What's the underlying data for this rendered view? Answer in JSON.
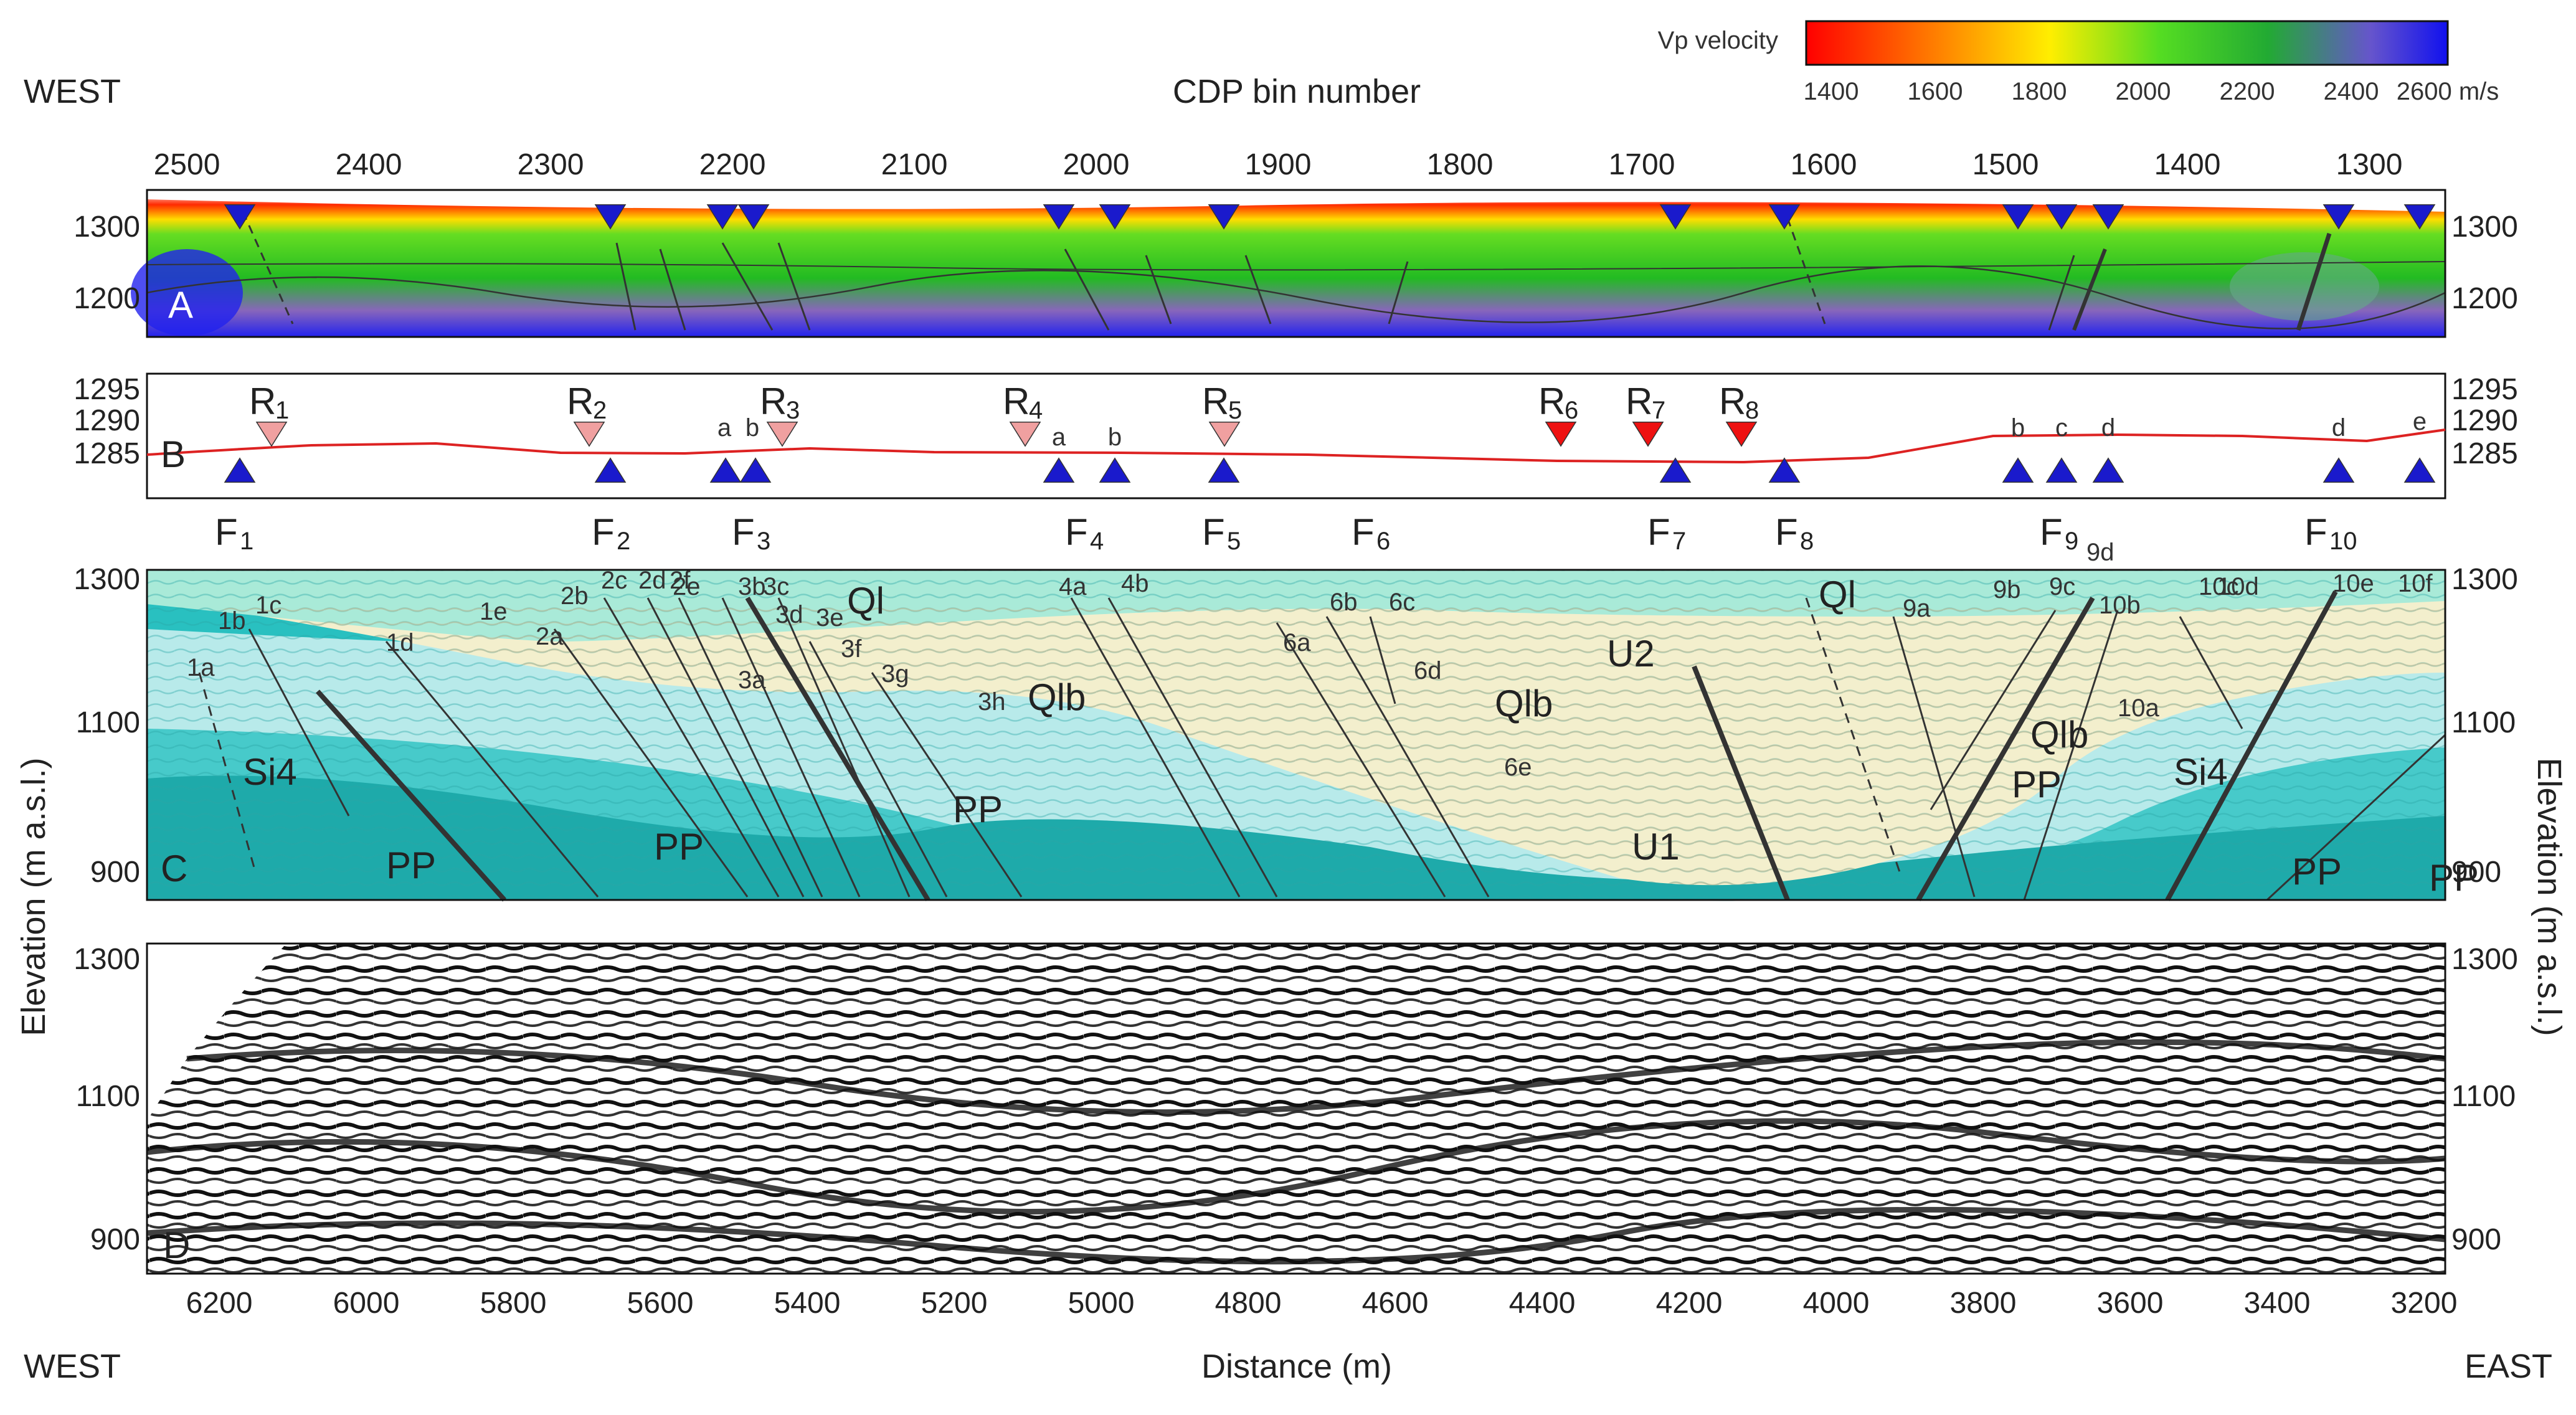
{
  "figure": {
    "west_top": "WEST",
    "west_bottom": "WEST",
    "east_bottom": "EAST",
    "cdp_title": "CDP bin number",
    "distance_title": "Distance (m)",
    "elevation_left": "Elevation (m a.s.l.)",
    "elevation_right": "Elevation (m a.s.l.)",
    "cdp_ticks": [
      "2500",
      "2400",
      "2300",
      "2200",
      "2100",
      "2000",
      "1900",
      "1800",
      "1700",
      "1600",
      "1500",
      "1400",
      "1300"
    ],
    "distance_ticks": [
      "6200",
      "6000",
      "5800",
      "5600",
      "5400",
      "5200",
      "5000",
      "4800",
      "4600",
      "4400",
      "4200",
      "4000",
      "3800",
      "3600",
      "3400",
      "3200"
    ]
  },
  "colorbar": {
    "title": "Vp velocity",
    "ticks": [
      "1400",
      "1600",
      "1800",
      "2000",
      "2200",
      "2400"
    ],
    "last_tick": "2600 m/s",
    "colors": [
      "#ff0000",
      "#ffee00",
      "#33cc33",
      "#2222ee"
    ]
  },
  "panels": {
    "a": {
      "letter": "A",
      "y_ticks": [
        "1300",
        "1200"
      ]
    },
    "b": {
      "letter": "B",
      "y_ticks": [
        "1295",
        "1290",
        "1285"
      ],
      "labels": [
        "R",
        "1",
        "R",
        "2",
        "R",
        "3",
        "R",
        "4",
        "R",
        "5",
        "R",
        "6",
        "R",
        "7",
        "R",
        "8"
      ],
      "small": [
        "a",
        "b",
        "a",
        "b",
        "b",
        "c",
        "d",
        "d",
        "e"
      ]
    },
    "c": {
      "letter": "C",
      "y_ticks": [
        "1300",
        "1100",
        "900"
      ],
      "faults": [
        "F",
        "1",
        "F",
        "2",
        "F",
        "3",
        "F",
        "4",
        "F",
        "5",
        "F",
        "6",
        "F",
        "7",
        "F",
        "8",
        "F",
        "9",
        "F",
        "10"
      ],
      "units": [
        "Ql",
        "Ql",
        "Qlb",
        "Qlb",
        "Qlb",
        "PP",
        "PP",
        "PP",
        "PP",
        "PP",
        "PP",
        "Si4",
        "Si4",
        "U2",
        "U1"
      ],
      "small": [
        "1c",
        "1b",
        "1a",
        "1d",
        "1e",
        "2a",
        "2b",
        "2c",
        "2d",
        "2e",
        "2f",
        "3b",
        "3c",
        "3d",
        "3e",
        "3a",
        "3f",
        "3g",
        "3h",
        "4a",
        "4b",
        "6a",
        "6b",
        "6c",
        "6d",
        "6e",
        "9a",
        "9b",
        "9c",
        "9d",
        "10a",
        "10b",
        "10c",
        "10d",
        "10e",
        "10f"
      ]
    },
    "d": {
      "letter": "D",
      "y_ticks": [
        "1300",
        "1100",
        "900"
      ]
    }
  }
}
